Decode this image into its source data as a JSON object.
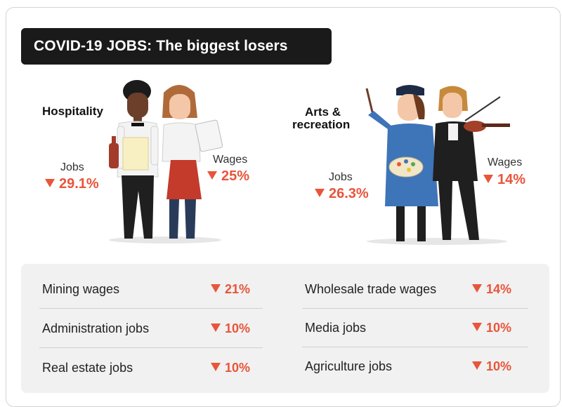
{
  "title": "COVID-19 JOBS: The biggest losers",
  "sectors": [
    {
      "name": "Hospitality",
      "jobs_label": "Jobs",
      "jobs_value": "29.1%",
      "wages_label": "Wages",
      "wages_value": "25%"
    },
    {
      "name_line1": "Arts &",
      "name_line2": "recreation",
      "jobs_label": "Jobs",
      "jobs_value": "26.3%",
      "wages_label": "Wages",
      "wages_value": "14%"
    }
  ],
  "table": {
    "left": [
      {
        "name": "Mining wages",
        "value": "21%"
      },
      {
        "name": "Administration jobs",
        "value": "10%"
      },
      {
        "name": "Real estate jobs",
        "value": "10%"
      }
    ],
    "right": [
      {
        "name": "Wholesale trade wages",
        "value": "14%"
      },
      {
        "name": "Media jobs",
        "value": "10%"
      },
      {
        "name": "Agriculture jobs",
        "value": "10%"
      }
    ]
  },
  "colors": {
    "accent": "#e8553a",
    "title_bg": "#1a1a1a",
    "panel_bg": "#f1f1f1"
  },
  "icons": [
    "down-triangle-icon",
    "waiter-illustration",
    "waitress-illustration",
    "painter-illustration",
    "violinist-illustration"
  ]
}
